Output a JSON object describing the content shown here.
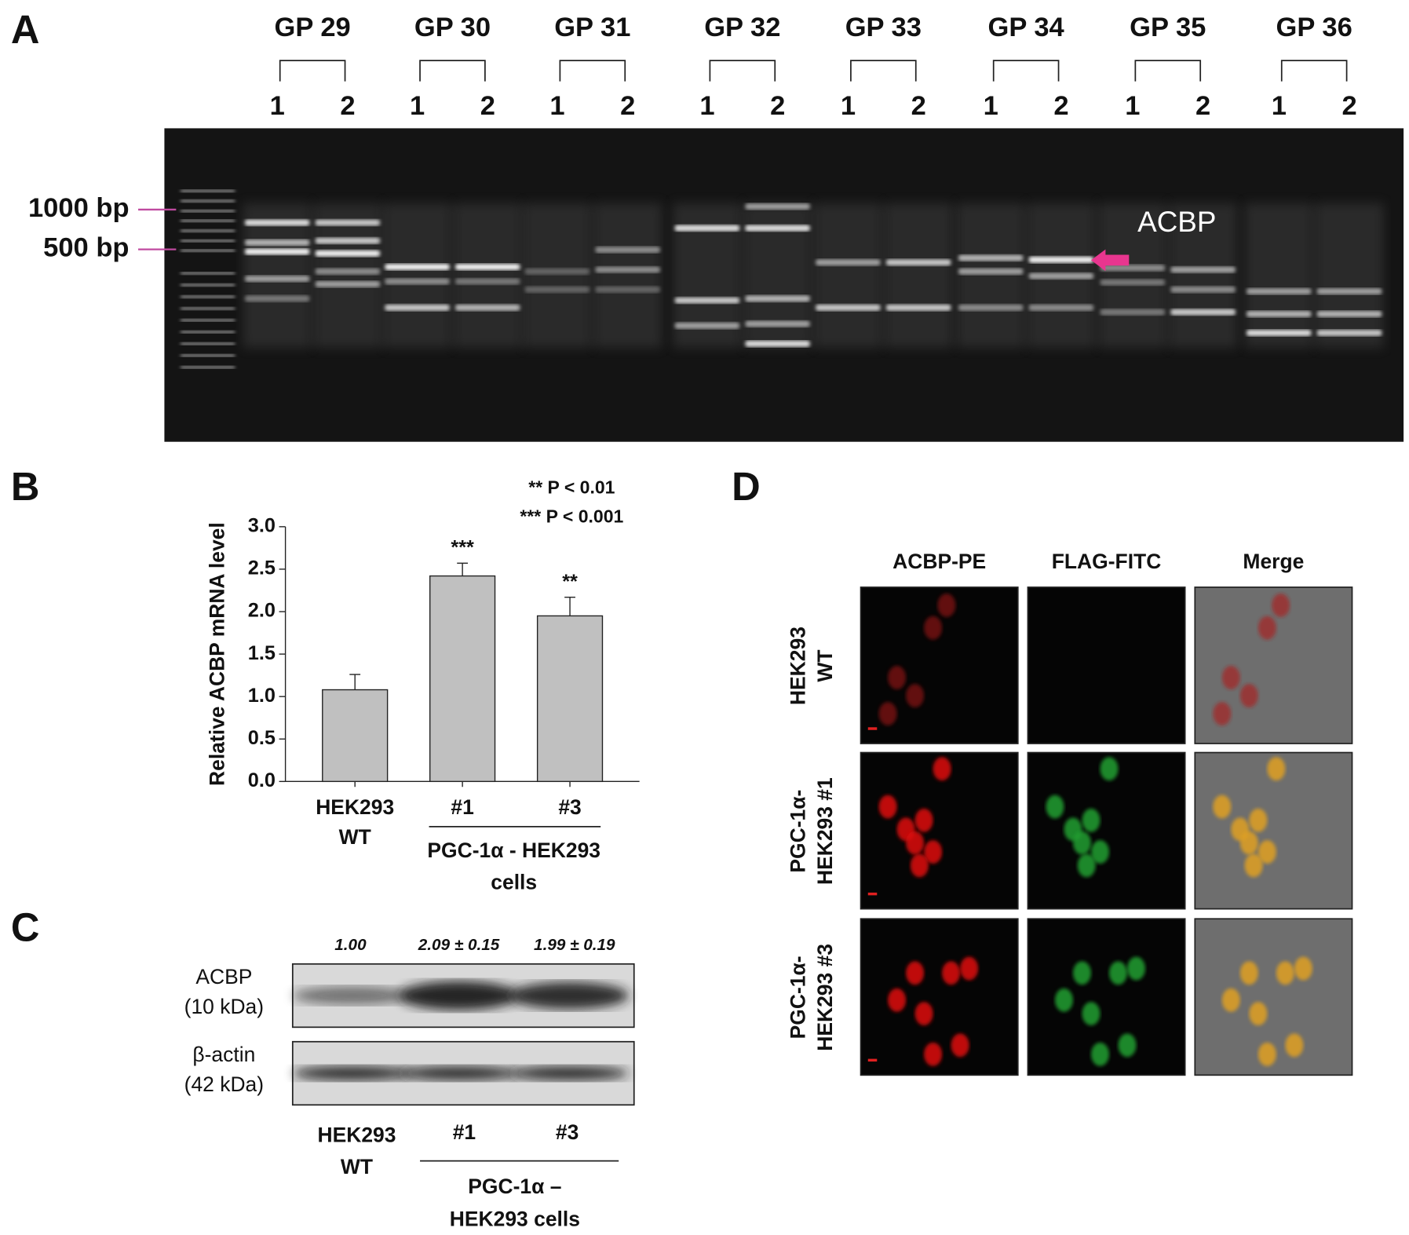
{
  "panel_a": {
    "letter": "A",
    "groups": [
      {
        "label": "GP 29",
        "lanes": [
          "1",
          "2"
        ]
      },
      {
        "label": "GP 30",
        "lanes": [
          "1",
          "2"
        ]
      },
      {
        "label": "GP 31",
        "lanes": [
          "1",
          "2"
        ]
      },
      {
        "label": "GP 32",
        "lanes": [
          "1",
          "2"
        ]
      },
      {
        "label": "GP 33",
        "lanes": [
          "1",
          "2"
        ]
      },
      {
        "label": "GP 34",
        "lanes": [
          "1",
          "2"
        ]
      },
      {
        "label": "GP 35",
        "lanes": [
          "1",
          "2"
        ]
      },
      {
        "label": "GP 36",
        "lanes": [
          "1",
          "2"
        ]
      }
    ],
    "markers": [
      "1000 bp",
      "500 bp"
    ],
    "band_label": "ACBP"
  },
  "chart_data": {
    "type": "bar",
    "letter": "B",
    "y_label": "Relative ACBP mRNA level",
    "categories": [
      "HEK293 WT",
      "#1",
      "#3"
    ],
    "values": [
      1.08,
      2.42,
      1.95
    ],
    "errors": [
      0.18,
      0.15,
      0.22
    ],
    "significance": [
      null,
      "***",
      "**"
    ],
    "group_label": [
      "PGC-1α - HEK293",
      "cells"
    ],
    "notes": [
      "** P < 0.01",
      "*** P < 0.001"
    ],
    "color": "#c0c0c0",
    "ylim": [
      0,
      3
    ],
    "yticks": [
      {
        "value": 0,
        "label": "0.0"
      },
      {
        "value": 0.5,
        "label": "0.5"
      },
      {
        "value": 1,
        "label": "1.0"
      },
      {
        "value": 1.5,
        "label": "1.5"
      },
      {
        "value": 2,
        "label": "2.0"
      },
      {
        "value": 2.5,
        "label": "2.5"
      },
      {
        "value": 3,
        "label": "3.0"
      }
    ]
  },
  "panel_c": {
    "letter": "C",
    "ratios": [
      "1.00",
      "2.09 ± 0.15",
      "1.99 ± 0.19"
    ],
    "blots": [
      {
        "name": "ACBP",
        "size": "(10 kDa)"
      },
      {
        "name": "β-actin",
        "size": "(42 kDa)"
      }
    ],
    "lanes": [
      "HEK293 WT",
      "#1",
      "#3"
    ],
    "group_label": [
      "PGC-1α –",
      "HEK293 cells"
    ]
  },
  "panel_d": {
    "letter": "D",
    "columns": [
      "ACBP-PE",
      "FLAG-FITC",
      "Merge"
    ],
    "rows": [
      [
        "HEK293",
        "WT"
      ],
      [
        "PGC-1α-",
        "HEK293 #1"
      ],
      [
        "PGC-1α-",
        "HEK293 #3"
      ]
    ]
  }
}
